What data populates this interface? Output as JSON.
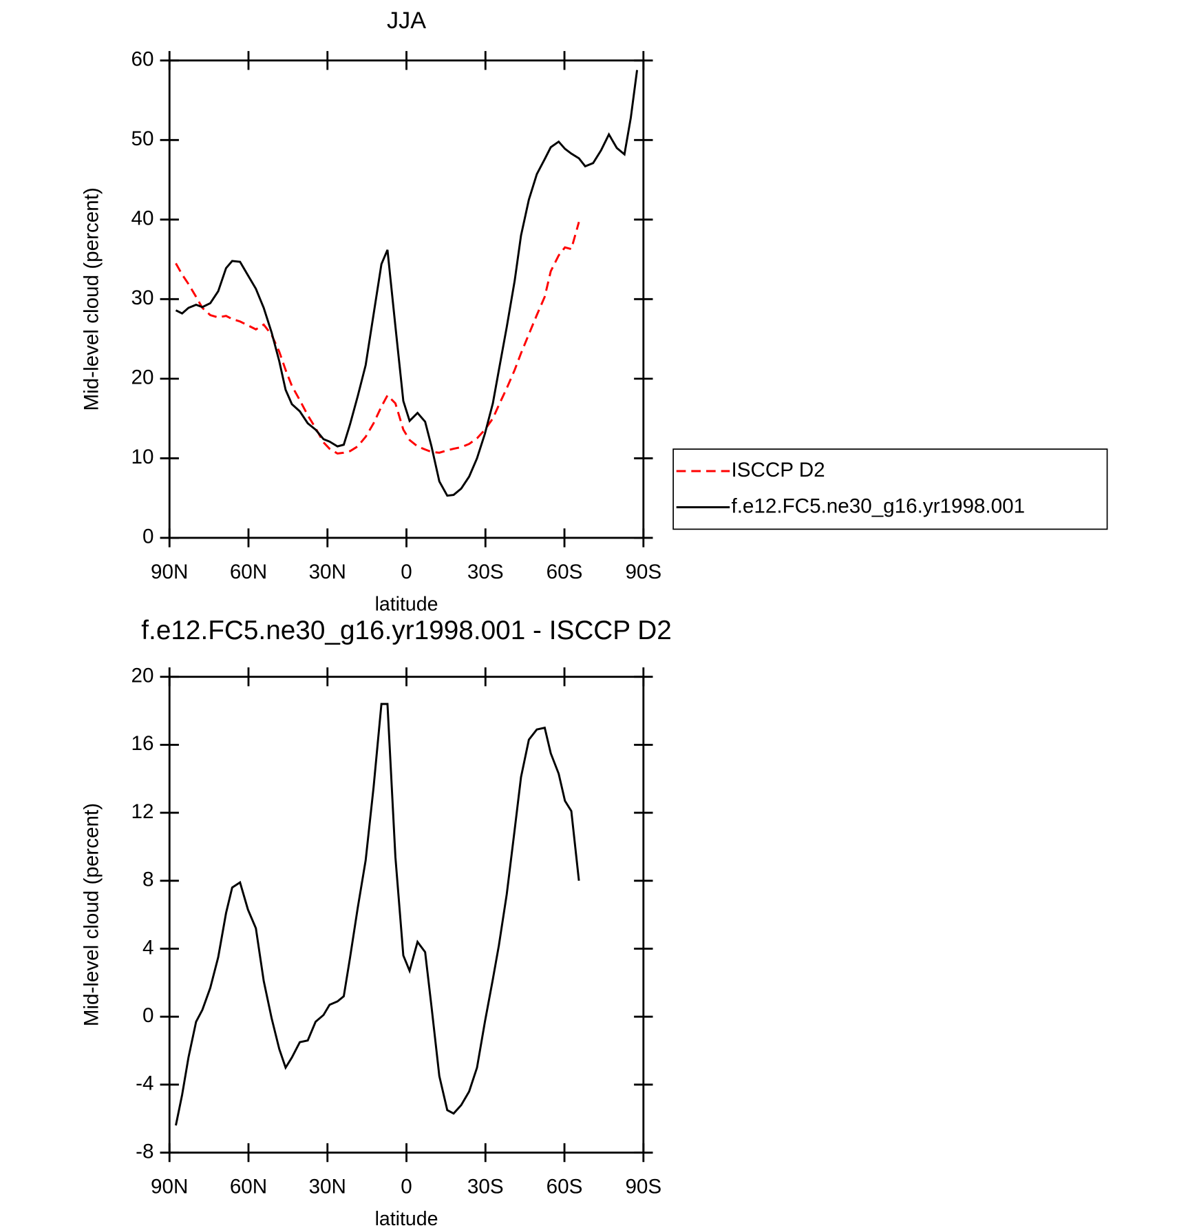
{
  "chart_data": [
    {
      "type": "line",
      "title": "JJA",
      "xlabel": "latitude",
      "ylabel": "Mid-level cloud (percent)",
      "x": [
        87.6,
        85.2,
        82.8,
        79.9,
        77.5,
        74.5,
        71.5,
        68.5,
        66.2,
        63.2,
        60.2,
        57.2,
        54.2,
        51.2,
        48.3,
        45.9,
        43.5,
        40.5,
        37.5,
        34.5,
        31.5,
        29.2,
        26.2,
        23.8,
        21.4,
        18.5,
        15.5,
        12.5,
        9.5,
        7.2,
        4.2,
        1.2,
        -1.2,
        -4.2,
        -7.1,
        -9.5,
        -12.5,
        -15.5,
        -17.9,
        -20.8,
        -23.8,
        -26.8,
        -29.8,
        -32.8,
        -35.1,
        -38.1,
        -41.1,
        -43.5,
        -46.5,
        -49.5,
        -52.5,
        -54.8,
        -57.8,
        -60.2,
        -62.6,
        -65.5,
        -67.9,
        -70.9,
        -73.9,
        -76.9,
        -79.9,
        -82.8,
        -85.2,
        -87.6
      ],
      "series": [
        {
          "name": "ISCCP D2",
          "color": "#ff0000",
          "linestyle": "dashed",
          "values": [
            34.5,
            33.1,
            31.9,
            30.3,
            28.9,
            28.0,
            27.7,
            27.9,
            27.5,
            27.2,
            26.7,
            26.2,
            26.8,
            25.5,
            23.4,
            21.1,
            19.1,
            17.3,
            15.4,
            13.8,
            12.0,
            11.2,
            10.6,
            10.7,
            10.9,
            11.5,
            12.7,
            14.4,
            16.5,
            17.9,
            16.9,
            13.6,
            12.3,
            11.5,
            11.1,
            10.8,
            10.7,
            11.0,
            11.2,
            11.4,
            11.8,
            12.5,
            13.6,
            15.0,
            16.7,
            18.8,
            21.1,
            23.2,
            25.6,
            28.0,
            30.3,
            33.5,
            35.5,
            36.5,
            36.3,
            39.7,
            null,
            null,
            null,
            null,
            null,
            null,
            null,
            null
          ]
        },
        {
          "name": "f.e12.FC5.ne30_g16.yr1998.001",
          "color": "#000000",
          "linestyle": "solid",
          "values": [
            28.6,
            28.2,
            28.9,
            29.3,
            29.0,
            29.5,
            31.0,
            33.9,
            34.8,
            34.7,
            33.0,
            31.3,
            28.9,
            25.8,
            22.2,
            18.6,
            16.8,
            15.9,
            14.4,
            13.6,
            12.4,
            12.1,
            11.5,
            11.7,
            14.3,
            17.8,
            21.7,
            28.1,
            34.4,
            36.2,
            26.6,
            17.2,
            14.7,
            15.7,
            14.6,
            11.5,
            7.1,
            5.3,
            5.4,
            6.2,
            7.7,
            10.0,
            13.1,
            16.9,
            21.1,
            26.5,
            32.3,
            38.0,
            42.5,
            45.7,
            47.6,
            49.1,
            49.8,
            48.9,
            48.3,
            47.7,
            46.7,
            47.1,
            48.7,
            50.7,
            49.0,
            48.2,
            52.8,
            58.8
          ]
        }
      ],
      "xlim": [
        90,
        -90
      ],
      "ylim": [
        0,
        60
      ],
      "xticks": [
        {
          "value": 90,
          "label": "90N"
        },
        {
          "value": 60,
          "label": "60N"
        },
        {
          "value": 30,
          "label": "30N"
        },
        0,
        {
          "value": -30,
          "label": "30S"
        },
        {
          "value": -60,
          "label": "60S"
        },
        {
          "value": -90,
          "label": "90S"
        }
      ],
      "yticks": [
        0,
        10,
        20,
        30,
        40,
        50,
        60
      ],
      "legend": "right"
    },
    {
      "type": "line",
      "title": "f.e12.FC5.ne30_g16.yr1998.001 - ISCCP D2",
      "xlabel": "latitude",
      "ylabel": "Mid-level cloud (percent)",
      "x": [
        87.6,
        85.2,
        82.8,
        79.9,
        77.5,
        74.5,
        71.5,
        68.5,
        66.2,
        63.2,
        60.2,
        57.2,
        54.2,
        51.2,
        48.3,
        45.9,
        43.5,
        40.5,
        37.5,
        34.5,
        31.5,
        29.2,
        26.2,
        23.8,
        21.4,
        18.5,
        15.5,
        12.5,
        9.5,
        7.2,
        4.2,
        1.2,
        -1.2,
        -4.2,
        -7.1,
        -9.5,
        -12.5,
        -15.5,
        -17.9,
        -20.8,
        -23.8,
        -26.8,
        -29.8,
        -32.8,
        -35.1,
        -38.1,
        -41.1,
        -43.5,
        -46.5,
        -49.5,
        -52.5,
        -54.8,
        -57.8,
        -60.2,
        -62.6,
        -65.5
      ],
      "series": [
        {
          "color": "#000000",
          "linestyle": "solid",
          "values": [
            -6.4,
            -4.6,
            -2.4,
            -0.3,
            0.4,
            1.7,
            3.5,
            6.1,
            7.6,
            7.9,
            6.3,
            5.2,
            2.1,
            -0.1,
            -1.9,
            -3.0,
            -2.4,
            -1.5,
            -1.4,
            -0.3,
            0.1,
            0.7,
            0.9,
            1.2,
            3.5,
            6.4,
            9.2,
            13.5,
            18.4,
            18.4,
            9.4,
            3.6,
            2.7,
            4.4,
            3.8,
            0.6,
            -3.5,
            -5.5,
            -5.7,
            -5.2,
            -4.4,
            -3.0,
            -0.3,
            2.2,
            4.2,
            7.2,
            11.0,
            14.1,
            16.3,
            16.9,
            17.0,
            15.5,
            14.3,
            12.7,
            12.1,
            8.0
          ]
        }
      ],
      "xlim": [
        90,
        -90
      ],
      "ylim": [
        -8,
        20
      ],
      "xticks": [
        {
          "value": 90,
          "label": "90N"
        },
        {
          "value": 60,
          "label": "60N"
        },
        {
          "value": 30,
          "label": "30N"
        },
        0,
        {
          "value": -30,
          "label": "30S"
        },
        {
          "value": -60,
          "label": "60S"
        },
        {
          "value": -90,
          "label": "90S"
        }
      ],
      "yticks": [
        -8,
        -4,
        0,
        4,
        8,
        12,
        16,
        20
      ]
    }
  ]
}
